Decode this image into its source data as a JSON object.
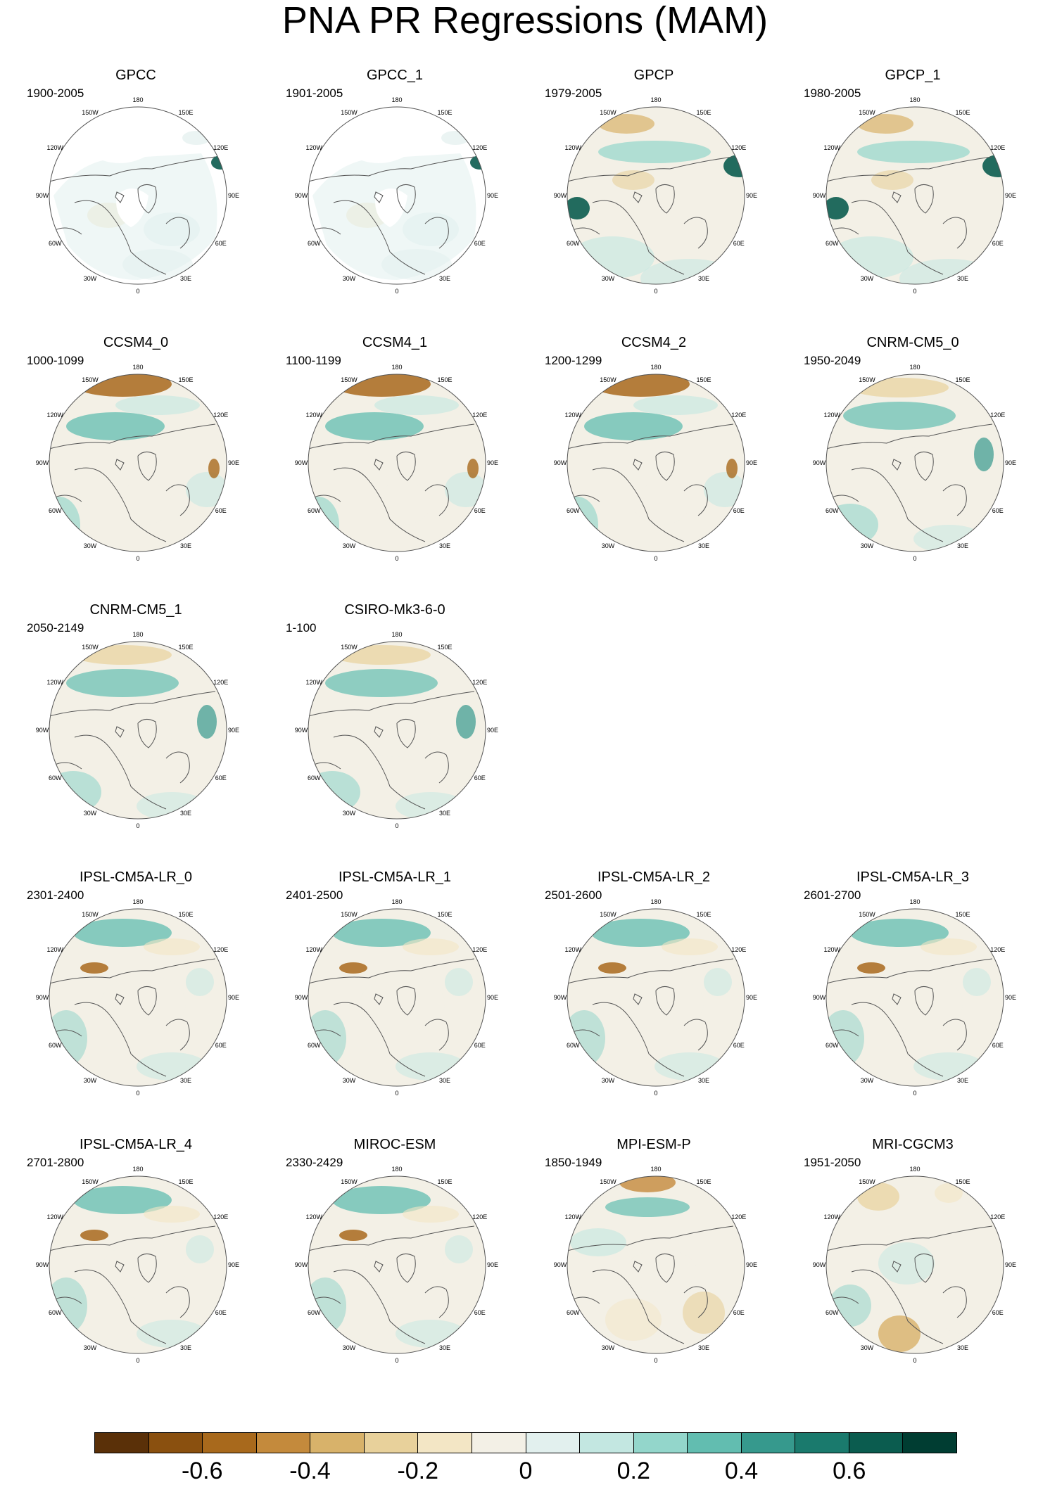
{
  "title": "PNA PR Regressions (MAM)",
  "lon_labels": [
    "180",
    "150E",
    "120E",
    "90E",
    "60E",
    "30E",
    "0",
    "30W",
    "60W",
    "90W",
    "120W",
    "150W"
  ],
  "panels": [
    {
      "name": "GPCC",
      "years": "1900-2005",
      "style": "gpcc"
    },
    {
      "name": "GPCC_1",
      "years": "1901-2005",
      "style": "gpcc"
    },
    {
      "name": "GPCP",
      "years": "1979-2005",
      "style": "gpcp"
    },
    {
      "name": "GPCP_1",
      "years": "1980-2005",
      "style": "gpcp"
    },
    {
      "name": "CCSM4_0",
      "years": "1000-1099",
      "style": "ccsm"
    },
    {
      "name": "CCSM4_1",
      "years": "1100-1199",
      "style": "ccsm"
    },
    {
      "name": "CCSM4_2",
      "years": "1200-1299",
      "style": "ccsm"
    },
    {
      "name": "CNRM-CM5_0",
      "years": "1950-2049",
      "style": "model"
    },
    {
      "name": "CNRM-CM5_1",
      "years": "2050-2149",
      "style": "model"
    },
    {
      "name": "CSIRO-Mk3-6-0",
      "years": "1-100",
      "style": "model"
    },
    {
      "name": "IPSL-CM5A-LR_0",
      "years": "2301-2400",
      "style": "ipsl"
    },
    {
      "name": "IPSL-CM5A-LR_1",
      "years": "2401-2500",
      "style": "ipsl"
    },
    {
      "name": "IPSL-CM5A-LR_2",
      "years": "2501-2600",
      "style": "ipsl"
    },
    {
      "name": "IPSL-CM5A-LR_3",
      "years": "2601-2700",
      "style": "ipsl"
    },
    {
      "name": "IPSL-CM5A-LR_4",
      "years": "2701-2800",
      "style": "ipsl"
    },
    {
      "name": "MIROC-ESM",
      "years": "2330-2429",
      "style": "ipsl"
    },
    {
      "name": "MPI-ESM-P",
      "years": "1850-1949",
      "style": "mpi"
    },
    {
      "name": "MRI-CGCM3",
      "years": "1951-2050",
      "style": "mri"
    }
  ],
  "colorbar": {
    "colors": [
      "#5a3008",
      "#8a500f",
      "#a8691c",
      "#c48a3c",
      "#d8b26a",
      "#e8d19b",
      "#f3e6c5",
      "#f3f0e6",
      "#e2f0ee",
      "#c3e7e1",
      "#93d6cb",
      "#62bdb0",
      "#36998d",
      "#1a7a6d",
      "#0b5c4f",
      "#003d32"
    ],
    "labels": [
      "-0.6",
      "-0.4",
      "-0.2",
      "0",
      "0.2",
      "0.4",
      "0.6"
    ]
  }
}
